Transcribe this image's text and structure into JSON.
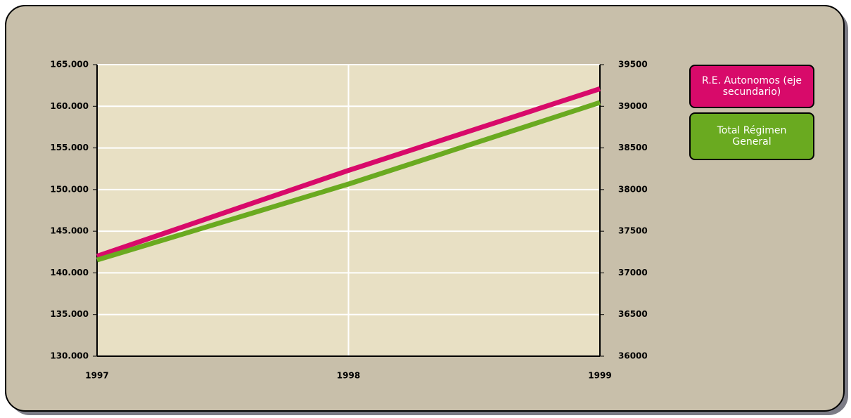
{
  "chart_data": {
    "type": "line",
    "categories": [
      "1997",
      "1998",
      "1999"
    ],
    "series": [
      {
        "name": "R.E. Autonomos (eje secundario)",
        "color": "#d80a6a",
        "axis": "y2",
        "values": [
          37200,
          38230,
          39210
        ]
      },
      {
        "name": "Total Régimen General",
        "color": "#6aaa20",
        "values": [
          141550,
          150660,
          160450
        ]
      }
    ],
    "ylim": [
      130000,
      165000
    ],
    "yticks": [
      {
        "value": 130000,
        "label": "130.000"
      },
      {
        "value": 135000,
        "label": "135.000"
      },
      {
        "value": 140000,
        "label": "140.000"
      },
      {
        "value": 145000,
        "label": "145.000"
      },
      {
        "value": 150000,
        "label": "150.000"
      },
      {
        "value": 155000,
        "label": "155.000"
      },
      {
        "value": 160000,
        "label": "160.000"
      },
      {
        "value": 165000,
        "label": "165.000"
      }
    ],
    "y2lim": [
      36000,
      39500
    ],
    "y2ticks": [
      36000,
      36500,
      37000,
      37500,
      38000,
      38500,
      39000,
      39500
    ],
    "grid": true,
    "legend": "right"
  }
}
